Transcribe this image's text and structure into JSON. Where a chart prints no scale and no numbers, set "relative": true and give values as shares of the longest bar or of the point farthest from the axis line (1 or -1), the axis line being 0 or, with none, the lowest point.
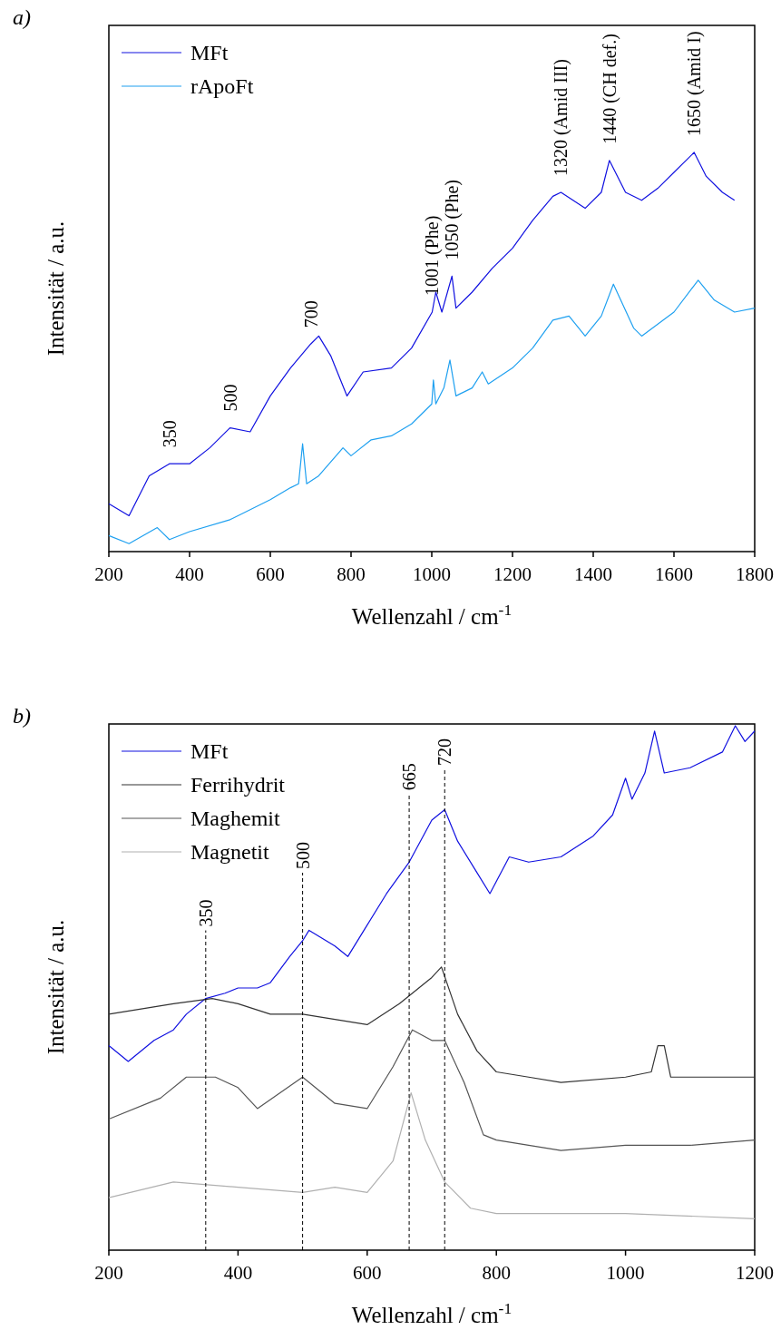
{
  "chart_data": [
    {
      "type": "line",
      "title": "a)",
      "xlabel": "Wellenzahl / cm$^{-1}$",
      "ylabel": "Intensität / a.u.",
      "relative": true,
      "xlim": [
        200,
        1800
      ],
      "xticks": [
        200,
        400,
        600,
        800,
        1000,
        1200,
        1400,
        1600,
        1800
      ],
      "legend": "top left",
      "series": [
        {
          "name": "MFt",
          "color": "#1010e0",
          "x": [
            200,
            250,
            300,
            350,
            400,
            450,
            500,
            550,
            600,
            650,
            700,
            720,
            750,
            790,
            830,
            900,
            950,
            1001,
            1010,
            1025,
            1050,
            1060,
            1100,
            1150,
            1200,
            1250,
            1300,
            1320,
            1380,
            1420,
            1440,
            1480,
            1520,
            1560,
            1600,
            1650,
            1680,
            1720,
            1750
          ],
          "values": [
            0.12,
            0.09,
            0.19,
            0.22,
            0.22,
            0.26,
            0.31,
            0.3,
            0.39,
            0.46,
            0.52,
            0.54,
            0.49,
            0.39,
            0.45,
            0.46,
            0.51,
            0.6,
            0.65,
            0.6,
            0.69,
            0.61,
            0.65,
            0.71,
            0.76,
            0.83,
            0.89,
            0.9,
            0.86,
            0.9,
            0.98,
            0.9,
            0.88,
            0.91,
            0.95,
            1.0,
            0.94,
            0.9,
            0.88
          ]
        },
        {
          "name": "rApoFt",
          "color": "#1ea0f0",
          "x": [
            200,
            250,
            320,
            350,
            400,
            500,
            600,
            650,
            670,
            680,
            690,
            720,
            780,
            800,
            850,
            900,
            950,
            1000,
            1004,
            1010,
            1030,
            1045,
            1060,
            1100,
            1125,
            1140,
            1200,
            1250,
            1300,
            1340,
            1380,
            1420,
            1450,
            1500,
            1520,
            1600,
            1660,
            1700,
            1750,
            1800
          ],
          "values": [
            0.04,
            0.02,
            0.06,
            0.03,
            0.05,
            0.08,
            0.13,
            0.16,
            0.17,
            0.27,
            0.17,
            0.19,
            0.26,
            0.24,
            0.28,
            0.29,
            0.32,
            0.37,
            0.43,
            0.37,
            0.41,
            0.48,
            0.39,
            0.41,
            0.45,
            0.42,
            0.46,
            0.51,
            0.58,
            0.59,
            0.54,
            0.59,
            0.67,
            0.56,
            0.54,
            0.6,
            0.68,
            0.63,
            0.6,
            0.61
          ]
        }
      ],
      "annotations": [
        {
          "text": "350",
          "x": 350,
          "y": 0.22
        },
        {
          "text": "500",
          "x": 500,
          "y": 0.31
        },
        {
          "text": "700",
          "x": 700,
          "y": 0.52
        },
        {
          "text": "1001 (Phe)",
          "x": 1001,
          "y": 0.6
        },
        {
          "text": "1050 (Phe)",
          "x": 1050,
          "y": 0.69
        },
        {
          "text": "1320 (Amid III)",
          "x": 1320,
          "y": 0.9
        },
        {
          "text": "1440 (CH def.)",
          "x": 1440,
          "y": 0.98
        },
        {
          "text": "1650 (Amid I)",
          "x": 1650,
          "y": 1.0
        }
      ]
    },
    {
      "type": "line",
      "title": "b)",
      "xlabel": "Wellenzahl / cm$^{-1}$",
      "ylabel": "Intensität / a.u.",
      "relative": true,
      "xlim": [
        200,
        1200
      ],
      "xticks": [
        200,
        400,
        600,
        800,
        1000,
        1200
      ],
      "legend": "top left",
      "series": [
        {
          "name": "MFt",
          "color": "#1010e0",
          "x": [
            200,
            230,
            270,
            300,
            320,
            350,
            380,
            400,
            430,
            450,
            480,
            500,
            510,
            550,
            570,
            600,
            630,
            665,
            700,
            720,
            740,
            770,
            790,
            820,
            850,
            900,
            950,
            980,
            1000,
            1010,
            1030,
            1045,
            1060,
            1100,
            1150,
            1170,
            1185,
            1200
          ],
          "values": [
            0.39,
            0.36,
            0.4,
            0.42,
            0.45,
            0.48,
            0.49,
            0.5,
            0.5,
            0.51,
            0.56,
            0.59,
            0.61,
            0.58,
            0.56,
            0.62,
            0.68,
            0.74,
            0.82,
            0.84,
            0.78,
            0.72,
            0.68,
            0.75,
            0.74,
            0.75,
            0.79,
            0.83,
            0.9,
            0.86,
            0.91,
            0.99,
            0.91,
            0.92,
            0.95,
            1.0,
            0.97,
            0.99
          ]
        },
        {
          "name": "Ferrihydrit",
          "color": "#333333",
          "x": [
            200,
            300,
            360,
            400,
            450,
            500,
            550,
            600,
            650,
            700,
            715,
            740,
            770,
            800,
            850,
            900,
            1000,
            1040,
            1050,
            1060,
            1070,
            1100,
            1200
          ],
          "values": [
            0.45,
            0.47,
            0.48,
            0.47,
            0.45,
            0.45,
            0.44,
            0.43,
            0.47,
            0.52,
            0.54,
            0.45,
            0.38,
            0.34,
            0.33,
            0.32,
            0.33,
            0.34,
            0.39,
            0.39,
            0.33,
            0.33,
            0.33
          ]
        },
        {
          "name": "Maghemit",
          "color": "#555555",
          "x": [
            200,
            280,
            320,
            365,
            400,
            430,
            500,
            550,
            600,
            640,
            670,
            700,
            720,
            750,
            780,
            800,
            900,
            1000,
            1100,
            1200
          ],
          "values": [
            0.25,
            0.29,
            0.33,
            0.33,
            0.31,
            0.27,
            0.33,
            0.28,
            0.27,
            0.35,
            0.42,
            0.4,
            0.4,
            0.32,
            0.22,
            0.21,
            0.19,
            0.2,
            0.2,
            0.21
          ]
        },
        {
          "name": "Magnetit",
          "color": "#b0b0b0",
          "x": [
            200,
            300,
            400,
            500,
            550,
            600,
            640,
            668,
            690,
            720,
            760,
            800,
            1000,
            1200
          ],
          "values": [
            0.1,
            0.13,
            0.12,
            0.11,
            0.12,
            0.11,
            0.17,
            0.3,
            0.21,
            0.13,
            0.08,
            0.07,
            0.07,
            0.06
          ]
        }
      ],
      "ref_lines": [
        {
          "axis": "x",
          "value": 350,
          "label": "350",
          "color": "#000000",
          "line_style": "dashed"
        },
        {
          "axis": "x",
          "value": 500,
          "label": "500",
          "color": "#000000",
          "line_style": "dashed"
        },
        {
          "axis": "x",
          "value": 665,
          "label": "665",
          "color": "#000000",
          "line_style": "dashed"
        },
        {
          "axis": "x",
          "value": 720,
          "label": "720",
          "color": "#000000",
          "line_style": "dashed"
        }
      ]
    }
  ]
}
